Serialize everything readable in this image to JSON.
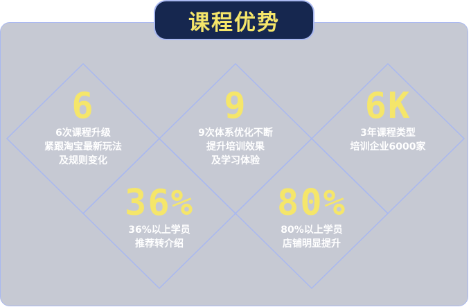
{
  "title": "课程优势",
  "items": [
    {
      "number": "6",
      "text": "6次课程升级\n紧跟淘宝最新玩法\n及规则变化"
    },
    {
      "number": "9",
      "text": "9次体系优化不断\n提升培训效果\n及学习体验"
    },
    {
      "number": "6K",
      "text": "3年课程类型\n培训企业6000家"
    },
    {
      "number": "36%",
      "text": "36%以上学员\n推荐转介绍"
    },
    {
      "number": "80%",
      "text": "80%以上学员\n店铺明显提升"
    }
  ],
  "colors": {
    "panel": "#c6c9d3",
    "accent_yellow": "#f5e66a",
    "title_bg": "#16274f",
    "line": "#a9b8f0"
  }
}
